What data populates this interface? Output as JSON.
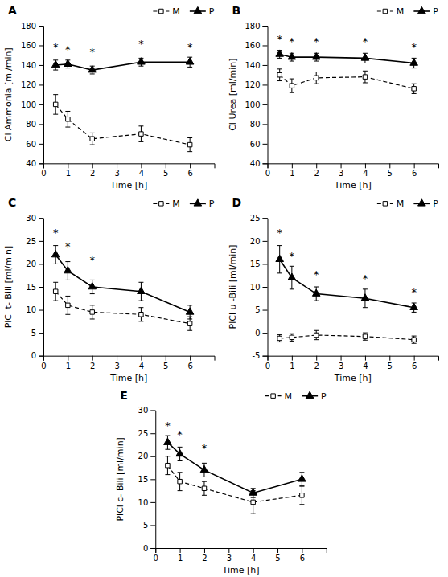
{
  "chart_data": [
    {
      "type": "line",
      "title": "A",
      "xlabel": "Time [h]",
      "ylabel": "Cl Ammonia [ml/min]",
      "x": [
        0.5,
        1,
        2,
        4,
        6
      ],
      "xlim": [
        0,
        7
      ],
      "xticks": [
        0,
        1,
        2,
        3,
        4,
        5,
        6
      ],
      "ylim": [
        40,
        180
      ],
      "yticks": [
        40,
        60,
        80,
        100,
        120,
        140,
        160,
        180
      ],
      "grid": false,
      "legend": "upper right",
      "series": [
        {
          "name": "M",
          "color": "#000000",
          "marker": "square-open",
          "line_style": "dashed",
          "values": [
            100,
            85,
            65,
            70,
            59
          ],
          "errors": [
            10,
            8,
            6,
            8,
            7
          ]
        },
        {
          "name": "P",
          "color": "#000000",
          "marker": "triangle",
          "line_style": "solid",
          "values": [
            140,
            141,
            135,
            143,
            143
          ],
          "errors": [
            5,
            4,
            4,
            4,
            5
          ]
        }
      ],
      "annotations": [
        {
          "x": 0.5,
          "y": 155,
          "text": "*"
        },
        {
          "x": 1,
          "y": 152,
          "text": "*"
        },
        {
          "x": 2,
          "y": 150,
          "text": "*"
        },
        {
          "x": 4,
          "y": 158,
          "text": "*"
        },
        {
          "x": 6,
          "y": 155,
          "text": "*"
        }
      ]
    },
    {
      "type": "line",
      "title": "B",
      "xlabel": "Time [h]",
      "ylabel": "Cl Urea [ml/min]",
      "x": [
        0.5,
        1,
        2,
        4,
        6
      ],
      "xlim": [
        0,
        7
      ],
      "xticks": [
        0,
        1,
        2,
        3,
        4,
        5,
        6
      ],
      "ylim": [
        40,
        180
      ],
      "yticks": [
        40,
        60,
        80,
        100,
        120,
        140,
        160,
        180
      ],
      "grid": false,
      "legend": "upper right",
      "series": [
        {
          "name": "M",
          "color": "#000000",
          "marker": "square-open",
          "line_style": "dashed",
          "values": [
            130,
            119,
            127,
            128,
            116
          ],
          "errors": [
            6,
            7,
            6,
            6,
            5
          ]
        },
        {
          "name": "P",
          "color": "#000000",
          "marker": "triangle",
          "line_style": "solid",
          "values": [
            151,
            148,
            148,
            147,
            142
          ],
          "errors": [
            4,
            4,
            4,
            5,
            5
          ]
        }
      ],
      "annotations": [
        {
          "x": 0.5,
          "y": 163,
          "text": "*"
        },
        {
          "x": 1,
          "y": 160,
          "text": "*"
        },
        {
          "x": 2,
          "y": 160,
          "text": "*"
        },
        {
          "x": 4,
          "y": 160,
          "text": "*"
        },
        {
          "x": 6,
          "y": 155,
          "text": "*"
        }
      ]
    },
    {
      "type": "line",
      "title": "C",
      "xlabel": "Time [h]",
      "ylabel": "PlCl t- Bili [ml/min]",
      "x": [
        0.5,
        1,
        2,
        4,
        6
      ],
      "xlim": [
        0,
        7
      ],
      "xticks": [
        0,
        1,
        2,
        3,
        4,
        5,
        6
      ],
      "ylim": [
        0,
        30
      ],
      "yticks": [
        0,
        5,
        10,
        15,
        20,
        25,
        30
      ],
      "grid": false,
      "legend": "upper right",
      "series": [
        {
          "name": "M",
          "color": "#000000",
          "marker": "square-open",
          "line_style": "dashed",
          "values": [
            14,
            11,
            9.5,
            9,
            7
          ],
          "errors": [
            2,
            2,
            1.5,
            1.5,
            1.5
          ]
        },
        {
          "name": "P",
          "color": "#000000",
          "marker": "triangle",
          "line_style": "solid",
          "values": [
            22,
            18.5,
            15,
            14,
            9.5
          ],
          "errors": [
            2,
            2,
            1.5,
            2,
            1.5
          ]
        }
      ],
      "annotations": [
        {
          "x": 0.5,
          "y": 26,
          "text": "*"
        },
        {
          "x": 1,
          "y": 23,
          "text": "*"
        },
        {
          "x": 2,
          "y": 20,
          "text": "*"
        }
      ]
    },
    {
      "type": "line",
      "title": "D",
      "xlabel": "Time [h]",
      "ylabel": "PlCl u -Bili [ml/min]",
      "x": [
        0.5,
        1,
        2,
        4,
        6
      ],
      "xlim": [
        0,
        7
      ],
      "xticks": [
        0,
        1,
        2,
        3,
        4,
        5,
        6
      ],
      "ylim": [
        -5,
        25
      ],
      "yticks": [
        -5,
        0,
        5,
        10,
        15,
        20,
        25
      ],
      "grid": false,
      "legend": "upper right",
      "series": [
        {
          "name": "M",
          "color": "#000000",
          "marker": "square-open",
          "line_style": "dashed",
          "values": [
            -1.2,
            -1.0,
            -0.5,
            -0.8,
            -1.5
          ],
          "errors": [
            0.8,
            0.8,
            1.0,
            0.8,
            0.8
          ]
        },
        {
          "name": "P",
          "color": "#000000",
          "marker": "triangle",
          "line_style": "solid",
          "values": [
            16,
            12,
            8.5,
            7.5,
            5.5
          ],
          "errors": [
            3,
            2.5,
            1.5,
            2,
            1.0
          ]
        }
      ],
      "annotations": [
        {
          "x": 0.5,
          "y": 21,
          "text": "*"
        },
        {
          "x": 1,
          "y": 16,
          "text": "*"
        },
        {
          "x": 2,
          "y": 12,
          "text": "*"
        },
        {
          "x": 4,
          "y": 11,
          "text": "*"
        },
        {
          "x": 6,
          "y": 8,
          "text": "*"
        }
      ]
    },
    {
      "type": "line",
      "title": "E",
      "xlabel": "Time [h]",
      "ylabel": "PlCl c- Bili [ml/min]",
      "x": [
        0.5,
        1,
        2,
        4,
        6
      ],
      "xlim": [
        0,
        7
      ],
      "xticks": [
        0,
        1,
        2,
        3,
        4,
        5,
        6
      ],
      "ylim": [
        0,
        30
      ],
      "yticks": [
        0,
        5,
        10,
        15,
        20,
        25,
        30
      ],
      "grid": false,
      "legend": "upper right",
      "series": [
        {
          "name": "M",
          "color": "#000000",
          "marker": "square-open",
          "line_style": "dashed",
          "values": [
            18,
            14.5,
            13,
            10,
            11.5
          ],
          "errors": [
            2,
            2,
            1.5,
            2.5,
            2
          ]
        },
        {
          "name": "P",
          "color": "#000000",
          "marker": "triangle",
          "line_style": "solid",
          "values": [
            23,
            20.5,
            17,
            12,
            15
          ],
          "errors": [
            1.5,
            1.5,
            1.5,
            1.0,
            1.5
          ]
        }
      ],
      "annotations": [
        {
          "x": 0.5,
          "y": 26,
          "text": "*"
        },
        {
          "x": 1,
          "y": 24,
          "text": "*"
        },
        {
          "x": 2,
          "y": 21,
          "text": "*"
        }
      ]
    }
  ]
}
